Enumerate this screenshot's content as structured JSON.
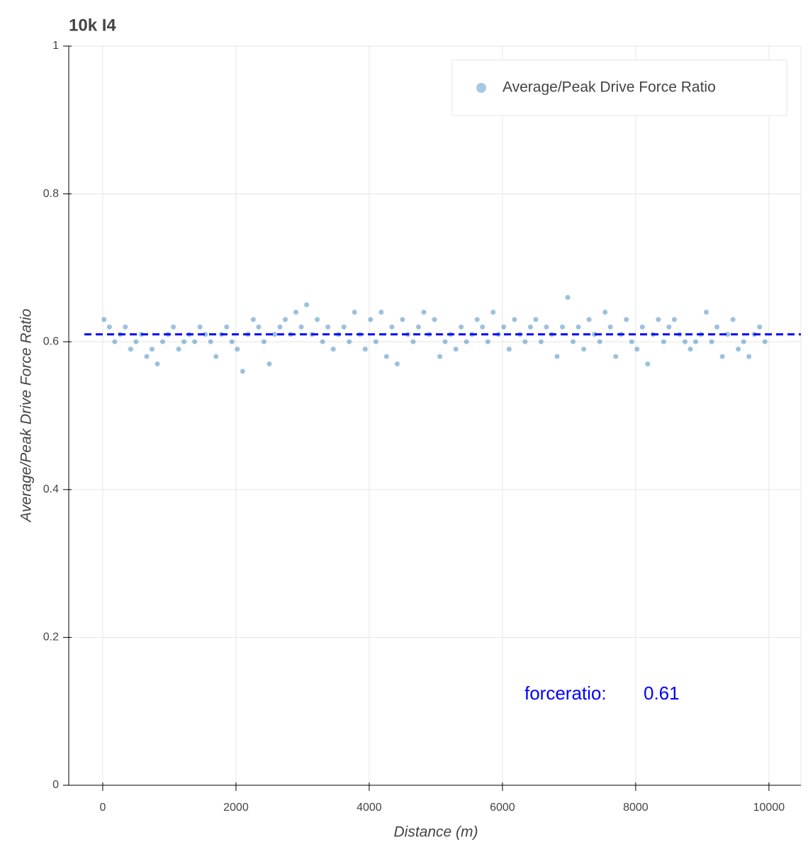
{
  "chart_data": {
    "type": "scatter",
    "title": "10k I4",
    "x_label": "Distance (m)",
    "y_label": "Average/Peak Drive Force Ratio",
    "xlim": [
      -510,
      10480
    ],
    "ylim": [
      0,
      1
    ],
    "xticks": [
      0,
      2000,
      4000,
      6000,
      8000,
      10000
    ],
    "yticks": [
      0,
      0.2,
      0.4,
      0.6,
      0.8,
      1
    ],
    "grid": true,
    "legend_position": "top-right",
    "series": [
      {
        "name": "Average/Peak Drive Force Ratio",
        "color": "#1f77b4",
        "x": [
          20,
          100,
          180,
          260,
          340,
          420,
          500,
          580,
          660,
          740,
          820,
          900,
          980,
          1060,
          1140,
          1220,
          1300,
          1380,
          1460,
          1540,
          1620,
          1700,
          1780,
          1860,
          1940,
          2020,
          2100,
          2180,
          2260,
          2340,
          2420,
          2500,
          2580,
          2660,
          2740,
          2820,
          2900,
          2980,
          3060,
          3140,
          3220,
          3300,
          3380,
          3460,
          3540,
          3620,
          3700,
          3780,
          3860,
          3940,
          4020,
          4100,
          4180,
          4260,
          4340,
          4420,
          4500,
          4580,
          4660,
          4740,
          4820,
          4900,
          4980,
          5060,
          5140,
          5220,
          5300,
          5380,
          5460,
          5540,
          5620,
          5700,
          5780,
          5860,
          5940,
          6020,
          6100,
          6180,
          6260,
          6340,
          6420,
          6500,
          6580,
          6660,
          6740,
          6820,
          6900,
          6980,
          7060,
          7140,
          7220,
          7300,
          7380,
          7460,
          7540,
          7620,
          7700,
          7780,
          7860,
          7940,
          8020,
          8100,
          8180,
          8260,
          8340,
          8420,
          8500,
          8580,
          8660,
          8740,
          8820,
          8900,
          8980,
          9060,
          9140,
          9220,
          9300,
          9380,
          9460,
          9540,
          9620,
          9700,
          9780,
          9860,
          9940
        ],
        "values": [
          0.63,
          0.62,
          0.6,
          0.61,
          0.62,
          0.59,
          0.6,
          0.61,
          0.58,
          0.59,
          0.57,
          0.6,
          0.61,
          0.62,
          0.59,
          0.6,
          0.61,
          0.6,
          0.62,
          0.61,
          0.6,
          0.58,
          0.61,
          0.62,
          0.6,
          0.59,
          0.56,
          0.61,
          0.63,
          0.62,
          0.6,
          0.57,
          0.61,
          0.62,
          0.63,
          0.61,
          0.64,
          0.62,
          0.65,
          0.61,
          0.63,
          0.6,
          0.62,
          0.59,
          0.61,
          0.62,
          0.6,
          0.64,
          0.61,
          0.59,
          0.63,
          0.6,
          0.64,
          0.58,
          0.62,
          0.57,
          0.63,
          0.61,
          0.6,
          0.62,
          0.64,
          0.61,
          0.63,
          0.58,
          0.6,
          0.61,
          0.59,
          0.62,
          0.6,
          0.61,
          0.63,
          0.62,
          0.6,
          0.64,
          0.61,
          0.62,
          0.59,
          0.63,
          0.61,
          0.6,
          0.62,
          0.63,
          0.6,
          0.62,
          0.61,
          0.58,
          0.62,
          0.66,
          0.6,
          0.62,
          0.59,
          0.63,
          0.61,
          0.6,
          0.64,
          0.62,
          0.58,
          0.61,
          0.63,
          0.6,
          0.59,
          0.62,
          0.57,
          0.61,
          0.63,
          0.6,
          0.62,
          0.63,
          0.61,
          0.6,
          0.59,
          0.6,
          0.61,
          0.64,
          0.6,
          0.62,
          0.58,
          0.61,
          0.63,
          0.59,
          0.6,
          0.58,
          0.61,
          0.62,
          0.6
        ]
      }
    ],
    "mean": 0.61,
    "mean_color": "#0000ff",
    "annotation": "forceratio:"
  }
}
